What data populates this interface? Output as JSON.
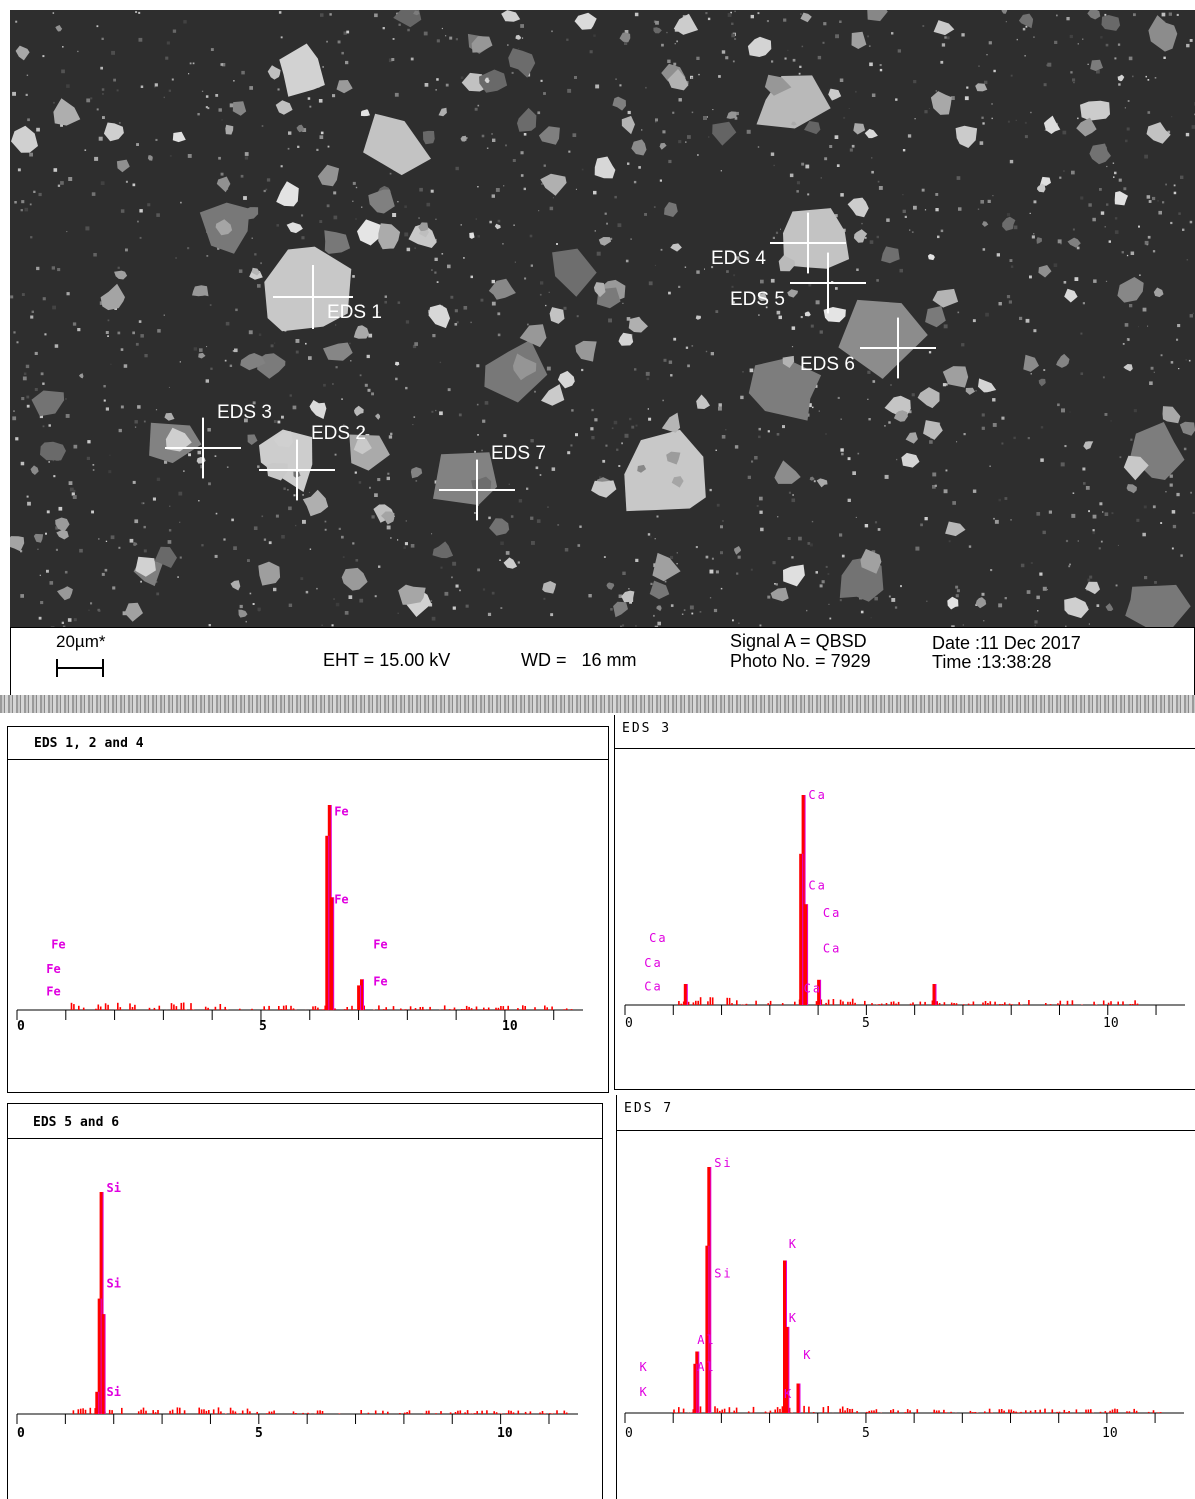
{
  "sem_image": {
    "markers": [
      {
        "label": "EDS 1"
      },
      {
        "label": "EDS 2"
      },
      {
        "label": "EDS 3"
      },
      {
        "label": "EDS 4"
      },
      {
        "label": "EDS 5"
      },
      {
        "label": "EDS 6"
      },
      {
        "label": "EDS 7"
      }
    ]
  },
  "info_bar": {
    "scale": "20µm*",
    "eht": "EHT = 15.00 kV",
    "wd": "WD =   16 mm",
    "signal": "Signal A = QBSD",
    "photo": "Photo No. = 7929",
    "date": "Date :11 Dec 2017",
    "time": "Time :13:38:28"
  },
  "chart_data": [
    {
      "type": "bar",
      "title": "EDS 1, 2 and 4",
      "x_ticks": [
        "0",
        "5",
        "10"
      ],
      "xlim": [
        0,
        11.6
      ],
      "peaks": [
        {
          "x": 6.4,
          "height": 1.0
        },
        {
          "x": 6.35,
          "height": 0.85
        },
        {
          "x": 6.45,
          "height": 0.55
        },
        {
          "x": 7.06,
          "height": 0.15
        },
        {
          "x": 7.0,
          "height": 0.12
        }
      ],
      "labels": [
        {
          "text": "Fe",
          "x": 6.5,
          "level": 0.95
        },
        {
          "text": "Fe",
          "x": 6.5,
          "level": 0.52
        },
        {
          "text": "Fe",
          "x": 7.3,
          "level": 0.3
        },
        {
          "text": "Fe",
          "x": 7.3,
          "level": 0.12
        },
        {
          "text": "Fe",
          "x": 0.7,
          "level": 0.3
        },
        {
          "text": "Fe",
          "x": 0.6,
          "level": 0.18
        },
        {
          "text": "Fe",
          "x": 0.6,
          "level": 0.07
        }
      ]
    },
    {
      "type": "bar",
      "title": "EDS 3",
      "x_ticks": [
        "0",
        "5",
        "10"
      ],
      "xlim": [
        0,
        11.6
      ],
      "peaks": [
        {
          "x": 3.69,
          "height": 1.0
        },
        {
          "x": 3.64,
          "height": 0.72
        },
        {
          "x": 3.74,
          "height": 0.48
        },
        {
          "x": 4.01,
          "height": 0.12
        },
        {
          "x": 6.4,
          "height": 0.1
        },
        {
          "x": 1.25,
          "height": 0.1
        }
      ],
      "labels": [
        {
          "text": "Ca",
          "x": 3.8,
          "level": 0.98
        },
        {
          "text": "Ca",
          "x": 3.8,
          "level": 0.55
        },
        {
          "text": "Ca",
          "x": 4.1,
          "level": 0.42
        },
        {
          "text": "Ca",
          "x": 4.1,
          "level": 0.25
        },
        {
          "text": "Ca",
          "x": 0.5,
          "level": 0.3
        },
        {
          "text": "Ca",
          "x": 0.4,
          "level": 0.18
        },
        {
          "text": "Ca",
          "x": 0.4,
          "level": 0.07
        },
        {
          "text": "Ca",
          "x": 3.7,
          "level": 0.06
        }
      ]
    },
    {
      "type": "bar",
      "title": "EDS 5 and 6",
      "x_ticks": [
        "0",
        "5",
        "10"
      ],
      "xlim": [
        0,
        11.6
      ],
      "peaks": [
        {
          "x": 1.74,
          "height": 1.0
        },
        {
          "x": 1.7,
          "height": 0.52
        },
        {
          "x": 1.78,
          "height": 0.45
        },
        {
          "x": 1.65,
          "height": 0.1
        }
      ],
      "labels": [
        {
          "text": "Si",
          "x": 1.85,
          "level": 1.0
        },
        {
          "text": "Si",
          "x": 1.85,
          "level": 0.57
        },
        {
          "text": "Si",
          "x": 1.85,
          "level": 0.08
        }
      ]
    },
    {
      "type": "bar",
      "title": "EDS 7",
      "x_ticks": [
        "0",
        "5",
        "10"
      ],
      "xlim": [
        0,
        11.6
      ],
      "peaks": [
        {
          "x": 1.74,
          "height": 1.0
        },
        {
          "x": 1.7,
          "height": 0.68
        },
        {
          "x": 1.49,
          "height": 0.25
        },
        {
          "x": 3.31,
          "height": 0.62
        },
        {
          "x": 3.36,
          "height": 0.35
        },
        {
          "x": 3.59,
          "height": 0.12
        },
        {
          "x": 1.45,
          "height": 0.2
        }
      ],
      "labels": [
        {
          "text": "Si",
          "x": 1.85,
          "level": 1.0
        },
        {
          "text": "Si",
          "x": 1.85,
          "level": 0.55
        },
        {
          "text": "K",
          "x": 3.4,
          "level": 0.67
        },
        {
          "text": "K",
          "x": 3.4,
          "level": 0.37
        },
        {
          "text": "K",
          "x": 3.7,
          "level": 0.22
        },
        {
          "text": "Al",
          "x": 1.5,
          "level": 0.28
        },
        {
          "text": "Al",
          "x": 1.5,
          "level": 0.17
        },
        {
          "text": "K",
          "x": 0.3,
          "level": 0.17
        },
        {
          "text": "K",
          "x": 0.3,
          "level": 0.07
        },
        {
          "text": "K",
          "x": 3.3,
          "level": 0.06
        }
      ]
    }
  ]
}
